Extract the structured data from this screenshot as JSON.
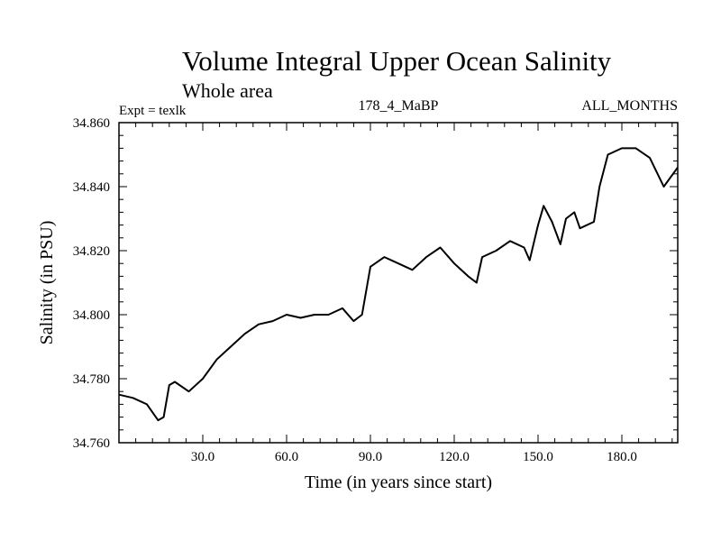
{
  "chart_data": {
    "type": "line",
    "title": "Volume Integral Upper Ocean Salinity",
    "subtitle": "Whole area",
    "header_left": "Expt = texlk",
    "header_center": "178_4_MaBP",
    "header_right": "ALL_MONTHS",
    "xlabel": "Time (in years since start)",
    "ylabel": "Salinity (in PSU)",
    "xlim": [
      0,
      200
    ],
    "ylim": [
      34.76,
      34.86
    ],
    "xticks": [
      30,
      60,
      90,
      120,
      150,
      180
    ],
    "xtick_labels": [
      "30.0",
      "60.0",
      "90.0",
      "120.0",
      "150.0",
      "180.0"
    ],
    "yticks": [
      34.76,
      34.78,
      34.8,
      34.82,
      34.84,
      34.86
    ],
    "ytick_labels": [
      "34.760",
      "34.780",
      "34.800",
      "34.820",
      "34.840",
      "34.860"
    ],
    "grid": false,
    "series": [
      {
        "name": "Salinity",
        "color": "#000000",
        "x": [
          0,
          5,
          10,
          14,
          16,
          18,
          20,
          25,
          30,
          35,
          40,
          45,
          50,
          55,
          60,
          65,
          70,
          75,
          80,
          84,
          87,
          90,
          95,
          100,
          105,
          110,
          115,
          120,
          125,
          128,
          130,
          135,
          140,
          145,
          147,
          150,
          152,
          155,
          158,
          160,
          163,
          165,
          170,
          172,
          175,
          180,
          185,
          190,
          195,
          200
        ],
        "values": [
          34.775,
          34.774,
          34.772,
          34.767,
          34.768,
          34.778,
          34.779,
          34.776,
          34.78,
          34.786,
          34.79,
          34.794,
          34.797,
          34.798,
          34.8,
          34.799,
          34.8,
          34.8,
          34.802,
          34.798,
          34.8,
          34.815,
          34.818,
          34.816,
          34.814,
          34.818,
          34.821,
          34.816,
          34.812,
          34.81,
          34.818,
          34.82,
          34.823,
          34.821,
          34.817,
          34.828,
          34.834,
          34.829,
          34.822,
          34.83,
          34.832,
          34.827,
          34.829,
          34.84,
          34.85,
          34.852,
          34.852,
          34.849,
          34.84,
          34.846
        ]
      }
    ]
  }
}
